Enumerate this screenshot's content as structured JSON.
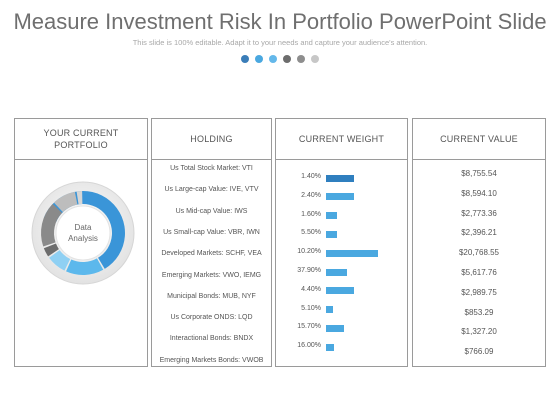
{
  "header": {
    "title": "Measure Investment Risk In Portfolio PowerPoint Slide",
    "subtitle": "This slide is 100% editable. Adapt it to your needs and capture your audience's attention."
  },
  "pager_dots": [
    "#3a7db8",
    "#4aa8e0",
    "#64b8ea",
    "#6d6d6d",
    "#8e8e8e",
    "#c7c7c7"
  ],
  "colors": {
    "accent": "#4aa8e0",
    "border": "#9a9a9a"
  },
  "columns": {
    "portfolio": "YOUR CURRENT PORTFOLIO",
    "holding": "HOLDING",
    "weight": "CURRENT WEIGHT",
    "value": "CURRENT VALUE"
  },
  "donut": {
    "label_line1": "Data",
    "label_line2": "Analysis"
  },
  "rows": [
    {
      "holding": "Us Total Stock Market: VTI",
      "weight": "1.40%",
      "value": "$8,755.54"
    },
    {
      "holding": "Us Large-cap Value: IVE, VTV",
      "weight": "2.40%",
      "value": "$8,594.10"
    },
    {
      "holding": "Us Mid-cap Value: IWS",
      "weight": "1.60%",
      "value": "$2,773.36"
    },
    {
      "holding": "Us Small-cap Value: VBR, IWN",
      "weight": "5.50%",
      "value": "$2,396.21"
    },
    {
      "holding": "Developed Markets: SCHF, VEA",
      "weight": "10.20%",
      "value": "$20,768.55"
    },
    {
      "holding": "Emerging Markets: VWO, IEMG",
      "weight": "37.90%",
      "value": "$5,617.76"
    },
    {
      "holding": "Municipal Bonds: MUB, NYF",
      "weight": "4.40%",
      "value": "$2,989.75"
    },
    {
      "holding": "Us Corporate ONDS: LQD",
      "weight": "5.10%",
      "value": "$853.29"
    },
    {
      "holding": "Interactional Bonds: BNDX",
      "weight": "15.70%",
      "value": "$1,327.20"
    },
    {
      "holding": "Emerging Markets Bonds: VWOB",
      "weight": "16.00%",
      "value": "$766.09"
    }
  ]
}
